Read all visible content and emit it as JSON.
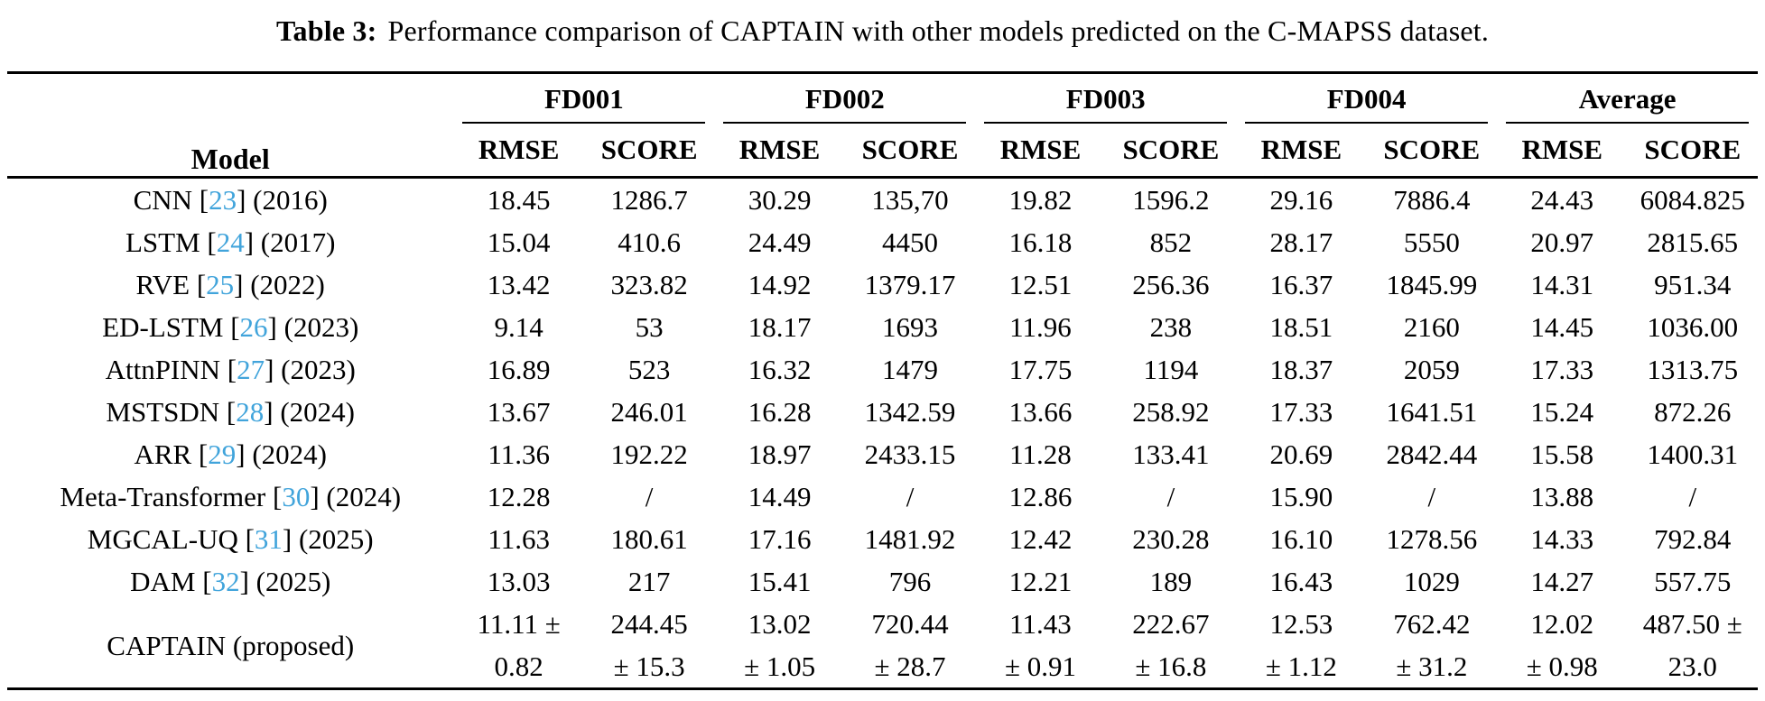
{
  "caption": {
    "label": "Table 3:",
    "text": "Performance comparison of CAPTAIN with other models predicted on the C-MAPSS dataset."
  },
  "colors": {
    "text": "#000000",
    "background": "#ffffff",
    "citation_blue": "#41a4db",
    "rule": "#000000"
  },
  "table": {
    "model_header": "Model",
    "groups": [
      "FD001",
      "FD002",
      "FD003",
      "FD004",
      "Average"
    ],
    "sub_headers": [
      "RMSE",
      "SCORE",
      "RMSE",
      "SCORE",
      "RMSE",
      "SCORE",
      "RMSE",
      "SCORE",
      "RMSE",
      "SCORE"
    ],
    "rows": [
      {
        "model": {
          "name": "CNN",
          "cite": "23",
          "year": "(2016)"
        },
        "values": [
          "18.45",
          "1286.7",
          "30.29",
          "135,70",
          "19.82",
          "1596.2",
          "29.16",
          "7886.4",
          "24.43",
          "6084.825"
        ]
      },
      {
        "model": {
          "name": "LSTM",
          "cite": "24",
          "year": "(2017)"
        },
        "values": [
          "15.04",
          "410.6",
          "24.49",
          "4450",
          "16.18",
          "852",
          "28.17",
          "5550",
          "20.97",
          "2815.65"
        ]
      },
      {
        "model": {
          "name": "RVE",
          "cite": "25",
          "year": "(2022)"
        },
        "values": [
          "13.42",
          "323.82",
          "14.92",
          "1379.17",
          "12.51",
          "256.36",
          "16.37",
          "1845.99",
          "14.31",
          "951.34"
        ]
      },
      {
        "model": {
          "name": "ED-LSTM",
          "cite": "26",
          "year": "(2023)"
        },
        "values": [
          "9.14",
          "53",
          "18.17",
          "1693",
          "11.96",
          "238",
          "18.51",
          "2160",
          "14.45",
          "1036.00"
        ]
      },
      {
        "model": {
          "name": "AttnPINN",
          "cite": "27",
          "year": "(2023)"
        },
        "values": [
          "16.89",
          "523",
          "16.32",
          "1479",
          "17.75",
          "1194",
          "18.37",
          "2059",
          "17.33",
          "1313.75"
        ]
      },
      {
        "model": {
          "name": "MSTSDN",
          "cite": "28",
          "year": "(2024)"
        },
        "values": [
          "13.67",
          "246.01",
          "16.28",
          "1342.59",
          "13.66",
          "258.92",
          "17.33",
          "1641.51",
          "15.24",
          "872.26"
        ]
      },
      {
        "model": {
          "name": "ARR",
          "cite": "29",
          "year": "(2024)"
        },
        "values": [
          "11.36",
          "192.22",
          "18.97",
          "2433.15",
          "11.28",
          "133.41",
          "20.69",
          "2842.44",
          "15.58",
          "1400.31"
        ]
      },
      {
        "model": {
          "name": "Meta-Transformer",
          "cite": "30",
          "year": "(2024)"
        },
        "values": [
          "12.28",
          "/",
          "14.49",
          "/",
          "12.86",
          "/",
          "15.90",
          "/",
          "13.88",
          "/"
        ]
      },
      {
        "model": {
          "name": "MGCAL-UQ",
          "cite": "31",
          "year": "(2025)"
        },
        "values": [
          "11.63",
          "180.61",
          "17.16",
          "1481.92",
          "12.42",
          "230.28",
          "16.10",
          "1278.56",
          "14.33",
          "792.84"
        ]
      },
      {
        "model": {
          "name": "DAM",
          "cite": "32",
          "year": "(2025)"
        },
        "values": [
          "13.03",
          "217",
          "15.41",
          "796",
          "12.21",
          "189",
          "16.43",
          "1029",
          "14.27",
          "557.75"
        ]
      },
      {
        "model": {
          "name": "CAPTAIN (proposed)",
          "cite": "",
          "year": ""
        },
        "values": [
          "11.11 ±\n0.82",
          "244.45\n± 15.3",
          "13.02\n± 1.05",
          "720.44\n± 28.7",
          "11.43\n± 0.91",
          "222.67\n± 16.8",
          "12.53\n± 1.12",
          "762.42\n± 31.2",
          "12.02\n± 0.98",
          "487.50 ±\n23.0"
        ]
      }
    ]
  }
}
